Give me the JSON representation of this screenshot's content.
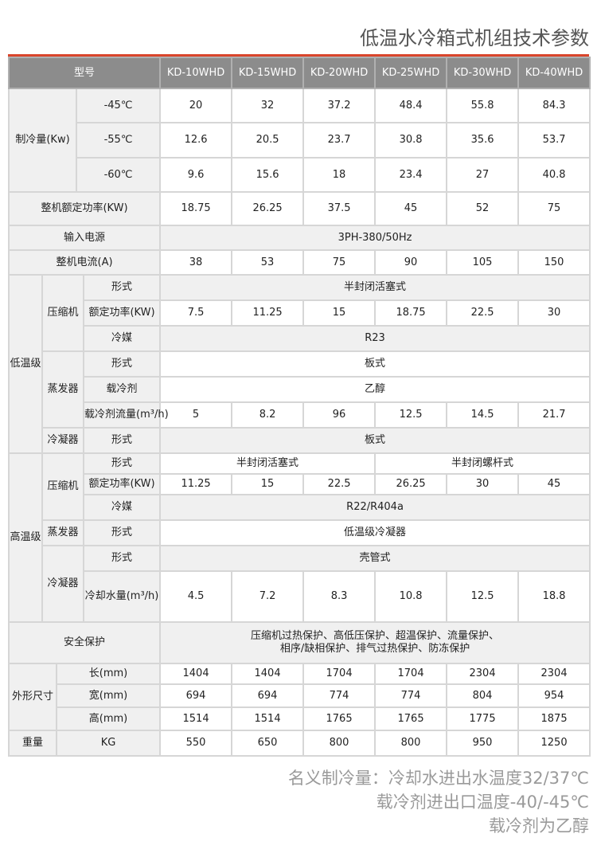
{
  "title": "低温水冷箱式机组技术参数",
  "table": {
    "rows": [
      {
        "labels": [
          "型号"
        ],
        "values": [
          "KD-10WHD",
          "KD-15WHD",
          "KD-20WHD",
          "KD-25WHD",
          "KD-30WHD",
          "KD-40WHD"
        ]
      },
      {
        "labels": [
          "制冷量(Kw)",
          "-45℃"
        ],
        "values": [
          "20",
          "32",
          "37.2",
          "48.4",
          "55.8",
          "84.3"
        ]
      },
      {
        "labels": [
          "-55℃"
        ],
        "values": [
          "12.6",
          "20.5",
          "23.7",
          "30.8",
          "35.6",
          "53.7"
        ]
      },
      {
        "labels": [
          "-60℃"
        ],
        "values": [
          "9.6",
          "15.6",
          "18",
          "23.4",
          "27",
          "40.8"
        ]
      },
      {
        "labels": [
          "整机额定功率(KW)"
        ],
        "values": [
          "18.75",
          "26.25",
          "37.5",
          "45",
          "52",
          "75"
        ]
      },
      {
        "labels": [
          "输入电源"
        ],
        "values": [
          "3PH-380/50Hz"
        ]
      },
      {
        "labels": [
          "整机电流(A)"
        ],
        "values": [
          "38",
          "53",
          "75",
          "90",
          "105",
          "150"
        ]
      },
      {
        "labels": [
          "低温级",
          "压缩机",
          "形式"
        ],
        "values": [
          "半封闭活塞式"
        ]
      },
      {
        "labels": [
          "额定功率(KW)"
        ],
        "values": [
          "7.5",
          "11.25",
          "15",
          "18.75",
          "22.5",
          "30"
        ]
      },
      {
        "labels": [
          "冷媒"
        ],
        "values": [
          "R23"
        ]
      },
      {
        "labels": [
          "蒸发器",
          "形式"
        ],
        "values": [
          "板式"
        ]
      },
      {
        "labels": [
          "载冷剂"
        ],
        "values": [
          "乙醇"
        ]
      },
      {
        "labels": [
          "载冷剂流量(m³/h)"
        ],
        "values": [
          "5",
          "8.2",
          "96",
          "12.5",
          "14.5",
          "21.7"
        ]
      },
      {
        "labels": [
          "冷凝器",
          "形式"
        ],
        "values": [
          "板式"
        ]
      },
      {
        "labels": [
          "高温级",
          "压缩机",
          "形式"
        ],
        "values": [
          "半封闭活塞式",
          "半封闭螺杆式"
        ]
      },
      {
        "labels": [
          "额定功率(KW)"
        ],
        "values": [
          "11.25",
          "15",
          "22.5",
          "26.25",
          "30",
          "45"
        ]
      },
      {
        "labels": [
          "冷媒"
        ],
        "values": [
          "R22/R404a"
        ]
      },
      {
        "labels": [
          "蒸发器",
          "形式"
        ],
        "values": [
          "低温级冷凝器"
        ]
      },
      {
        "labels": [
          "冷凝器",
          "形式"
        ],
        "values": [
          "壳管式"
        ]
      },
      {
        "labels": [
          "冷却水量(m³/h)"
        ],
        "values": [
          "4.5",
          "7.2",
          "8.3",
          "10.8",
          "12.5",
          "18.8"
        ]
      },
      {
        "labels": [
          "安全保护"
        ],
        "values": [
          "压缩机过热保护、高低压保护、超温保护、流量保护、\n相序/缺相保护、排气过热保护、防冻保护"
        ]
      },
      {
        "labels": [
          "外形尺寸",
          "长(mm)"
        ],
        "values": [
          "1404",
          "1404",
          "1704",
          "1704",
          "2304",
          "2304"
        ]
      },
      {
        "labels": [
          "宽(mm)"
        ],
        "values": [
          "694",
          "694",
          "774",
          "774",
          "804",
          "954"
        ]
      },
      {
        "labels": [
          "高(mm)"
        ],
        "values": [
          "1514",
          "1514",
          "1765",
          "1765",
          "1775",
          "1875"
        ]
      },
      {
        "labels": [
          "重量",
          "KG"
        ],
        "values": [
          "550",
          "650",
          "800",
          "800",
          "950",
          "1250"
        ]
      }
    ]
  },
  "notes": [
    "名义制冷量：冷却水进出水温度32/37℃",
    "载冷剂进出口温度-40/-45℃",
    "载冷剂为乙醇"
  ],
  "colors": {
    "accent_line": "#d9452b",
    "header_bg": "#8c8c8c",
    "label_bg": "#f0f0f0"
  }
}
